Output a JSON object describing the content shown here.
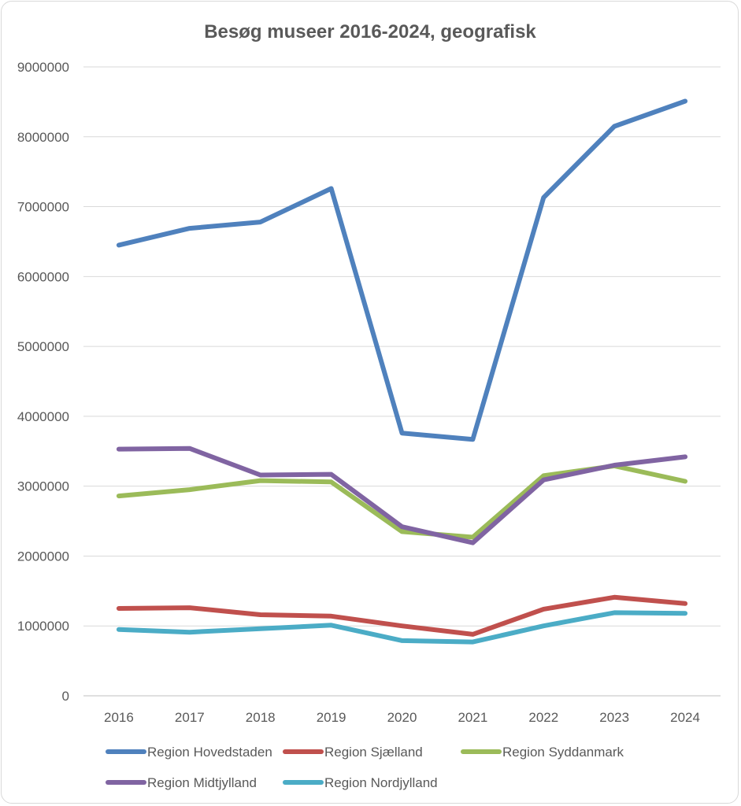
{
  "chart_data": {
    "type": "line",
    "title": "Besøg museer 2016-2024, geografisk",
    "xlabel": "",
    "ylabel": "",
    "categories": [
      "2016",
      "2017",
      "2018",
      "2019",
      "2020",
      "2021",
      "2022",
      "2023",
      "2024"
    ],
    "ylim": [
      0,
      9000000
    ],
    "yticks": [
      0,
      1000000,
      2000000,
      3000000,
      4000000,
      5000000,
      6000000,
      7000000,
      8000000,
      9000000
    ],
    "grid": true,
    "legend_position": "bottom",
    "series": [
      {
        "name": "Region Hovedstaden",
        "color": "#4f81bd",
        "values": [
          6450000,
          6690000,
          6780000,
          7260000,
          3760000,
          3670000,
          7130000,
          8150000,
          8510000
        ]
      },
      {
        "name": "Region Sjælland",
        "color": "#c0504d",
        "values": [
          1250000,
          1260000,
          1160000,
          1140000,
          1000000,
          880000,
          1240000,
          1410000,
          1320000
        ]
      },
      {
        "name": "Region Syddanmark",
        "color": "#9bbb59",
        "values": [
          2860000,
          2950000,
          3080000,
          3060000,
          2350000,
          2270000,
          3150000,
          3290000,
          3070000
        ]
      },
      {
        "name": "Region Midtjylland",
        "color": "#8064a2",
        "values": [
          3530000,
          3540000,
          3160000,
          3170000,
          2420000,
          2190000,
          3090000,
          3300000,
          3420000
        ]
      },
      {
        "name": "Region Nordjylland",
        "color": "#4bacc6",
        "values": [
          950000,
          910000,
          960000,
          1010000,
          790000,
          770000,
          1000000,
          1190000,
          1180000
        ]
      }
    ]
  }
}
